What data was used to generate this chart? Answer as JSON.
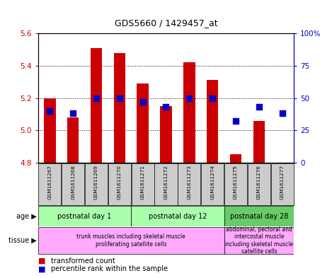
{
  "title": "GDS5660 / 1429457_at",
  "samples": [
    "GSM1611267",
    "GSM1611268",
    "GSM1611269",
    "GSM1611270",
    "GSM1611271",
    "GSM1611272",
    "GSM1611273",
    "GSM1611274",
    "GSM1611275",
    "GSM1611276",
    "GSM1611277"
  ],
  "red_values": [
    5.2,
    5.08,
    5.51,
    5.48,
    5.29,
    5.15,
    5.42,
    5.31,
    4.85,
    5.06,
    4.8
  ],
  "blue_values": [
    40,
    38,
    50,
    50,
    47,
    43,
    50,
    50,
    32,
    43,
    38
  ],
  "ylim_left": [
    4.8,
    5.6
  ],
  "ylim_right": [
    0,
    100
  ],
  "yticks_left": [
    4.8,
    5.0,
    5.2,
    5.4,
    5.6
  ],
  "yticks_right": [
    0,
    25,
    50,
    75,
    100
  ],
  "ytick_labels_right": [
    "0",
    "25",
    "50",
    "75",
    "100%"
  ],
  "bar_bottom": 4.8,
  "bar_color": "#cc0000",
  "dot_color": "#0000cc",
  "grid_color": "#000000",
  "age_groups": [
    {
      "label": "postnatal day 1",
      "start": 0,
      "end": 4,
      "color": "#aaffaa"
    },
    {
      "label": "postnatal day 12",
      "start": 4,
      "end": 8,
      "color": "#aaffaa"
    },
    {
      "label": "postnatal day 28",
      "start": 8,
      "end": 11,
      "color": "#66cc66"
    }
  ],
  "tissue_groups": [
    {
      "label": "trunk muscles including skeletal muscle\nproliferating satellite cells",
      "start": 0,
      "end": 8,
      "color": "#ffaaff"
    },
    {
      "label": "abdominal, pectoral and\nintercostal muscle\nincluding skeletal muscle\nsatellite cells",
      "start": 8,
      "end": 11,
      "color": "#ffaaff"
    }
  ],
  "legend_red": "transformed count",
  "legend_blue": "percentile rank within the sample",
  "left_color": "#cc0000",
  "right_color": "#0000cc",
  "bar_width": 0.5,
  "dot_size": 30,
  "sample_bg": "#cccccc"
}
